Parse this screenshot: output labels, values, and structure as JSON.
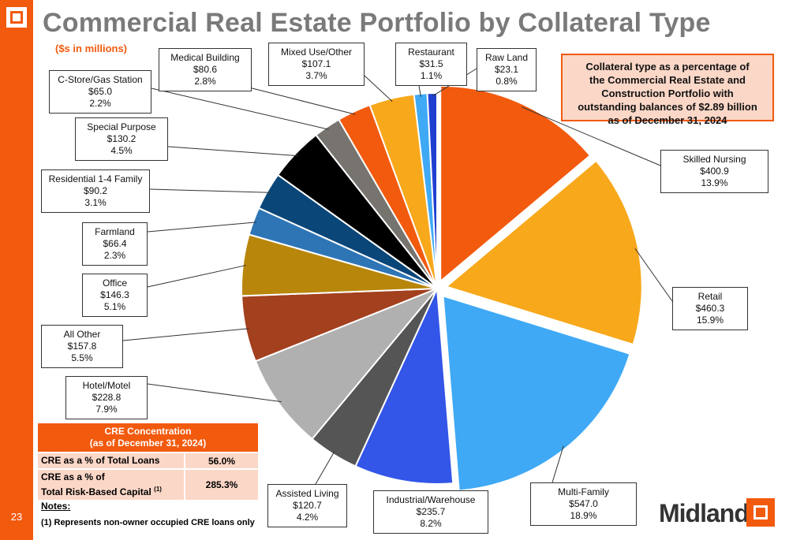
{
  "page": {
    "number": "23"
  },
  "header": {
    "title": "Commercial Real Estate Portfolio by Collateral Type",
    "subtitle": "($s in millions)"
  },
  "callout": {
    "line1": "Collateral type as a percentage of",
    "line2": "the Commercial Real Estate and",
    "line3": "Construction Portfolio with",
    "line4": "outstanding balances of $2.89 billion",
    "line5": "as of December 31, 2024"
  },
  "chart_data": {
    "type": "pie",
    "title": "Commercial Real Estate Portfolio by Collateral Type",
    "unit": "($s in millions)",
    "slices": [
      {
        "name": "Skilled Nursing",
        "value_label": "$400.9",
        "value": 400.9,
        "pct_label": "13.9%",
        "pct": 13.9,
        "color": "#f25a0e"
      },
      {
        "name": "Retail",
        "value_label": "$460.3",
        "value": 460.3,
        "pct_label": "15.9%",
        "pct": 15.9,
        "color": "#f8a81b"
      },
      {
        "name": "Multi-Family",
        "value_label": "$547.0",
        "value": 547.0,
        "pct_label": "18.9%",
        "pct": 18.9,
        "color": "#3fa9f5"
      },
      {
        "name": "Industrial/Warehouse",
        "value_label": "$235.7",
        "value": 235.7,
        "pct_label": "8.2%",
        "pct": 8.2,
        "color": "#3355e8"
      },
      {
        "name": "Assisted Living",
        "value_label": "$120.7",
        "value": 120.7,
        "pct_label": "4.2%",
        "pct": 4.2,
        "color": "#555555"
      },
      {
        "name": "Hotel/Motel",
        "value_label": "$228.8",
        "value": 228.8,
        "pct_label": "7.9%",
        "pct": 7.9,
        "color": "#b0b0b0"
      },
      {
        "name": "All Other",
        "value_label": "$157.8",
        "value": 157.8,
        "pct_label": "5.5%",
        "pct": 5.5,
        "color": "#a3401e"
      },
      {
        "name": "Office",
        "value_label": "$146.3",
        "value": 146.3,
        "pct_label": "5.1%",
        "pct": 5.1,
        "color": "#b8860b"
      },
      {
        "name": "Farmland",
        "value_label": "$66.4",
        "value": 66.4,
        "pct_label": "2.3%",
        "pct": 2.3,
        "color": "#2e75b6"
      },
      {
        "name": "Residential 1-4 Family",
        "value_label": "$90.2",
        "value": 90.2,
        "pct_label": "3.1%",
        "pct": 3.1,
        "color": "#0b4679"
      },
      {
        "name": "Special Purpose",
        "value_label": "$130.2",
        "value": 130.2,
        "pct_label": "4.5%",
        "pct": 4.5,
        "color": "#000000"
      },
      {
        "name": "C-Store/Gas Station",
        "value_label": "$65.0",
        "value": 65.0,
        "pct_label": "2.2%",
        "pct": 2.2,
        "color": "#777470"
      },
      {
        "name": "Medical Building",
        "value_label": "$80.6",
        "value": 80.6,
        "pct_label": "2.8%",
        "pct": 2.8,
        "color": "#f25a0e"
      },
      {
        "name": "Mixed Use/Other",
        "value_label": "$107.1",
        "value": 107.1,
        "pct_label": "3.7%",
        "pct": 3.7,
        "color": "#f8a81b"
      },
      {
        "name": "Restaurant",
        "value_label": "$31.5",
        "value": 31.5,
        "pct_label": "1.1%",
        "pct": 1.1,
        "color": "#3fa9f5"
      },
      {
        "name": "Raw Land",
        "value_label": "$23.1",
        "value": 23.1,
        "pct_label": "0.8%",
        "pct": 0.8,
        "color": "#1f3fd0"
      }
    ],
    "start_angle_deg": 0,
    "direction": "clockwise",
    "exploded": [
      "Skilled Nursing",
      "Retail",
      "Multi-Family"
    ]
  },
  "cre_table": {
    "title_line1": "CRE Concentration",
    "title_line2": "(as of December 31, 2024)",
    "row1_label": "CRE as a % of Total Loans",
    "row1_value": "56.0%",
    "row2_label_line1": "CRE as a % of",
    "row2_label_line2": "Total Risk-Based Capital",
    "row2_sup": "(1)",
    "row2_value": "285.3%"
  },
  "notes": {
    "heading": "Notes:",
    "note1": "(1)   Represents non-owner occupied CRE loans only"
  },
  "brand": {
    "name": "Midland",
    "color": "#f25a0e"
  }
}
